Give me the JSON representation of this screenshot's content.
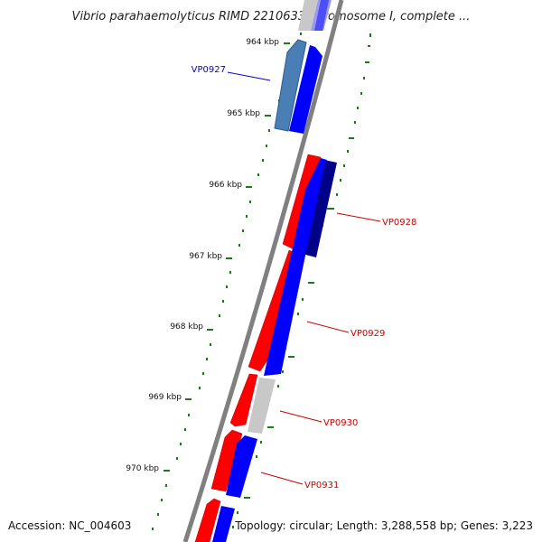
{
  "title": "Vibrio parahaemolyticus RIMD 2210633 chromosome I, complete ...",
  "footer": {
    "accession": "Accession: NC_004603",
    "summary": "Topology: circular; Length: 3,288,558 bp; Genes: 3,223"
  },
  "ticks": [
    "964 kbp",
    "965 kbp",
    "966 kbp",
    "967 kbp",
    "968 kbp",
    "969 kbp",
    "970 kbp"
  ],
  "gene_labels": [
    {
      "name": "VP0927",
      "color": "#0000cc"
    },
    {
      "name": "VP0928",
      "color": "#cc0000"
    },
    {
      "name": "VP0929",
      "color": "#cc0000"
    },
    {
      "name": "VP0930",
      "color": "#cc0000"
    },
    {
      "name": "VP0931",
      "color": "#cc0000"
    }
  ],
  "colors": {
    "forward_cds": "#ff0000",
    "reverse_cds": "#0000ff",
    "highlight_cds": "#4a7fb5",
    "dark_cds": "#000088",
    "gray_cds": "#c8c8c8",
    "backbone": "#808080",
    "tick_marks": "#1a7a1a"
  }
}
